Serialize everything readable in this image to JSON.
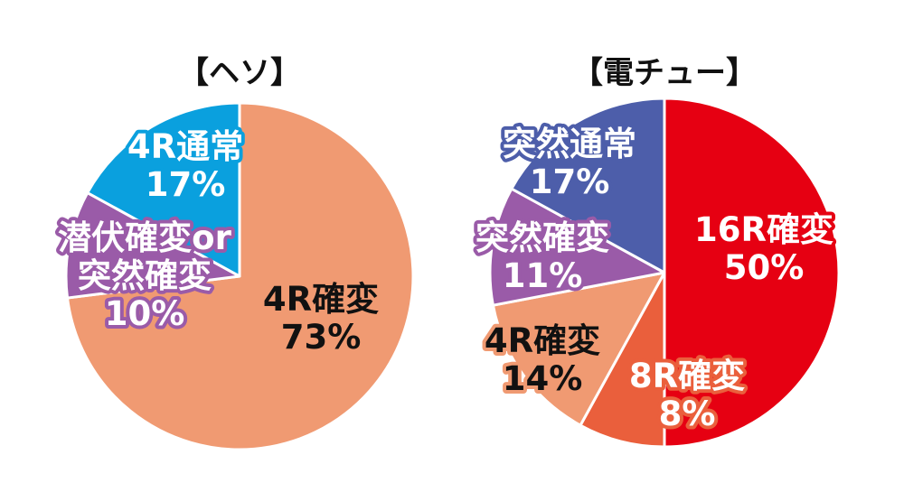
{
  "chart_data": [
    {
      "type": "pie",
      "title": "【ヘソ】",
      "slices": [
        {
          "label": "4R確変",
          "value": 73,
          "value_text": "73%",
          "color": "#F09A72",
          "text_color": "#111111",
          "outline": "#F09A72"
        },
        {
          "label": "潜伏確変or突然確変",
          "label_lines": [
            "潜伏確変or",
            "突然確変"
          ],
          "value": 10,
          "value_text": "10%",
          "color": "#9A5BA8",
          "text_color": "#ffffff",
          "outline": "#9A5BA8"
        },
        {
          "label": "4R通常",
          "value": 17,
          "value_text": "17%",
          "color": "#0AA0DE",
          "text_color": "#ffffff",
          "outline": "#0AA0DE"
        }
      ]
    },
    {
      "type": "pie",
      "title": "【電チュー】",
      "slices": [
        {
          "label": "16R確変",
          "value": 50,
          "value_text": "50%",
          "color": "#E60012",
          "text_color": "#ffffff",
          "outline": "#E60012"
        },
        {
          "label": "8R確変",
          "value": 8,
          "value_text": "8%",
          "color": "#EA5F3C",
          "text_color": "#ffffff",
          "outline": "#EA5F3C"
        },
        {
          "label": "4R確変",
          "value": 14,
          "value_text": "14%",
          "color": "#F09A72",
          "text_color": "#111111",
          "outline": "#F09A72"
        },
        {
          "label": "突然確変",
          "value": 11,
          "value_text": "11%",
          "color": "#9A5BA8",
          "text_color": "#ffffff",
          "outline": "#9A5BA8"
        },
        {
          "label": "突然通常",
          "value": 17,
          "value_text": "17%",
          "color": "#4D5EAA",
          "text_color": "#ffffff",
          "outline": "#4D5EAA"
        }
      ]
    }
  ]
}
